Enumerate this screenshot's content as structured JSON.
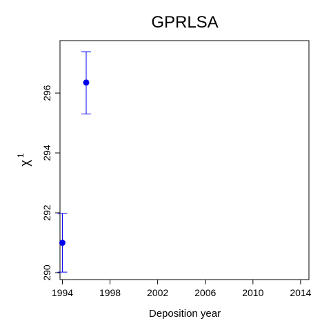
{
  "chart_data": {
    "type": "scatter",
    "title": "GPRLSA",
    "xlabel": "Deposition year",
    "ylabel": "χ",
    "ylabel_superscript": "1",
    "xlim": [
      1993.8,
      2014.7
    ],
    "ylim": [
      289.77,
      297.75
    ],
    "x_ticks": [
      1994,
      1998,
      2002,
      2006,
      2010,
      2014
    ],
    "y_ticks": [
      290,
      292,
      294,
      296
    ],
    "grid": false,
    "legend": "none",
    "colors": {
      "points": "#0000ee",
      "axes": "#000000"
    },
    "points": [
      {
        "x": 1994,
        "y": 291.0,
        "y_low": 290.02,
        "y_high": 291.98
      },
      {
        "x": 1996,
        "y": 296.35,
        "y_low": 295.3,
        "y_high": 297.38
      }
    ]
  }
}
